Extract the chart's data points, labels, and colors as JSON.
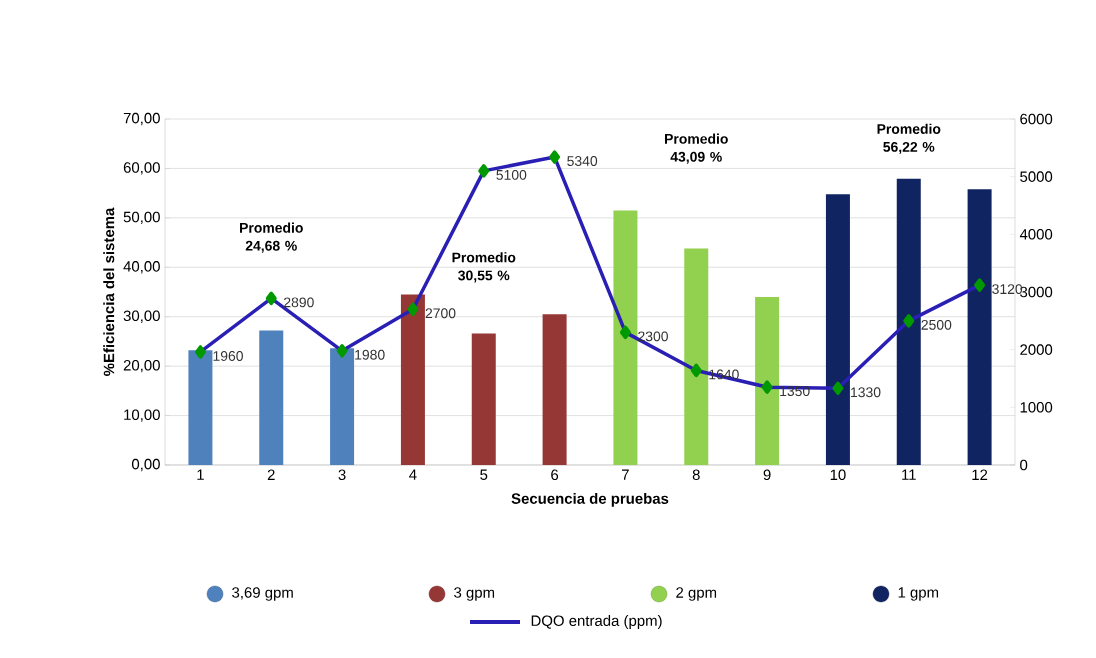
{
  "chart_data": {
    "type": "bar",
    "xlabel": "Secuencia de pruebas",
    "ylabel": "%Eficiencia del sistema",
    "categories": [
      "1",
      "2",
      "3",
      "4",
      "5",
      "6",
      "7",
      "8",
      "9",
      "10",
      "11",
      "12"
    ],
    "series": [
      {
        "name": "3,69 gpm",
        "color": "#4f81bd",
        "values": [
          23.2,
          27.2,
          23.6,
          null,
          null,
          null,
          null,
          null,
          null,
          null,
          null,
          null
        ]
      },
      {
        "name": "3 gpm",
        "color": "#953735",
        "values": [
          null,
          null,
          null,
          34.5,
          26.6,
          30.5,
          null,
          null,
          null,
          null,
          null,
          null
        ]
      },
      {
        "name": "2 gpm",
        "color": "#92d050",
        "values": [
          null,
          null,
          null,
          null,
          null,
          null,
          51.5,
          43.8,
          34.0,
          null,
          null,
          null
        ]
      },
      {
        "name": "1 gpm",
        "color": "#0f2461",
        "values": [
          null,
          null,
          null,
          null,
          null,
          null,
          null,
          null,
          null,
          54.8,
          57.9,
          55.8
        ]
      },
      {
        "name": "DQO entrada (ppm)",
        "type": "line",
        "axis": "y2",
        "color": "#2a1fb5",
        "values": [
          1960,
          2890,
          1980,
          2700,
          5100,
          5340,
          2300,
          1640,
          1350,
          1330,
          2500,
          3120
        ],
        "value_labels": [
          "1960",
          "2890",
          "1980",
          "2700",
          "5100",
          "5340",
          "2300",
          "1640",
          "1350",
          "1330",
          "2500",
          "3120"
        ]
      }
    ],
    "ylim": [
      0,
      70
    ],
    "yticks": [
      {
        "value": 0,
        "label": "0,00"
      },
      {
        "value": 10,
        "label": "10,00"
      },
      {
        "value": 20,
        "label": "20,00"
      },
      {
        "value": 30,
        "label": "30,00"
      },
      {
        "value": 40,
        "label": "40,00"
      },
      {
        "value": 50,
        "label": "50,00"
      },
      {
        "value": 60,
        "label": "60,00"
      },
      {
        "value": 70,
        "label": "70,00"
      }
    ],
    "y2lim": [
      0,
      6000
    ],
    "y2ticks": [
      0,
      1000,
      2000,
      3000,
      4000,
      5000,
      6000
    ],
    "annotations": [
      "Promedio 24,68 %",
      "Promedio 30,55 %",
      "Promedio 43,09 %",
      "Promedio 56,22 %"
    ],
    "grid": "y",
    "legend": "bottom",
    "marker": "diamond"
  }
}
